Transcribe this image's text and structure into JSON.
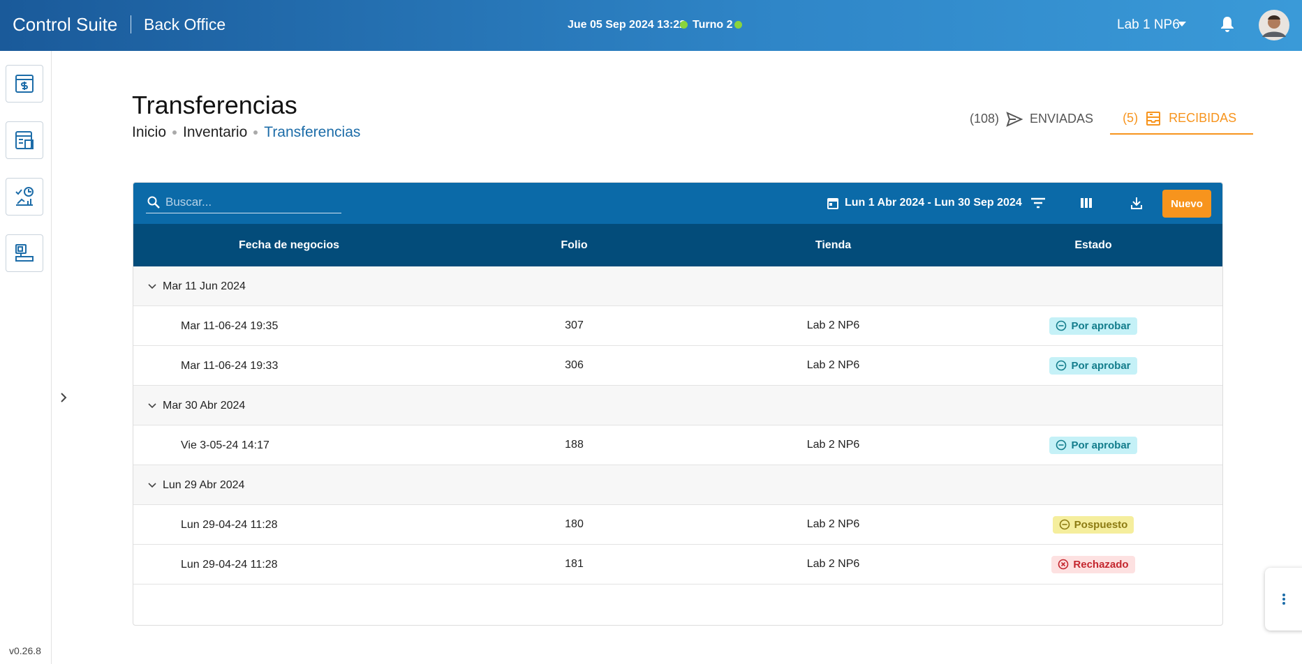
{
  "header": {
    "brand": "Control Suite",
    "module": "Back Office",
    "datetime": "Jue 05 Sep 2024 13:22",
    "shift": "Turno 2",
    "store": "Lab 1 NP6"
  },
  "sidebar": {
    "version": "v0.26.8"
  },
  "page": {
    "title": "Transferencias",
    "breadcrumb": [
      "Inicio",
      "Inventario",
      "Transferencias"
    ]
  },
  "tabs": [
    {
      "count": "(108)",
      "label": "ENVIADAS"
    },
    {
      "count": "(5)",
      "label": "RECIBIDAS"
    }
  ],
  "toolbar": {
    "search_placeholder": "Buscar...",
    "date_range": "Lun 1 Abr 2024 - Lun 30 Sep 2024",
    "new_button": "Nuevo"
  },
  "table": {
    "columns": [
      "Fecha de negocios",
      "Folio",
      "Tienda",
      "Estado"
    ],
    "groups": [
      {
        "label": "Mar 11 Jun 2024",
        "rows": [
          [
            "Mar 11-06-24 19:35",
            307,
            "Lab 2 NP6",
            "Por aprobar"
          ],
          [
            "Mar 11-06-24 19:33",
            306,
            "Lab 2 NP6",
            "Por aprobar"
          ]
        ]
      },
      {
        "label": "Mar 30 Abr 2024",
        "rows": [
          [
            "Vie 3-05-24 14:17",
            188,
            "Lab 2 NP6",
            "Por aprobar"
          ]
        ]
      },
      {
        "label": "Lun 29 Abr 2024",
        "rows": [
          [
            "Lun 29-04-24 11:28",
            180,
            "Lab 2 NP6",
            "Pospuesto"
          ],
          [
            "Lun 29-04-24 11:28",
            181,
            "Lab 2 NP6",
            "Rechazado"
          ]
        ]
      }
    ]
  }
}
